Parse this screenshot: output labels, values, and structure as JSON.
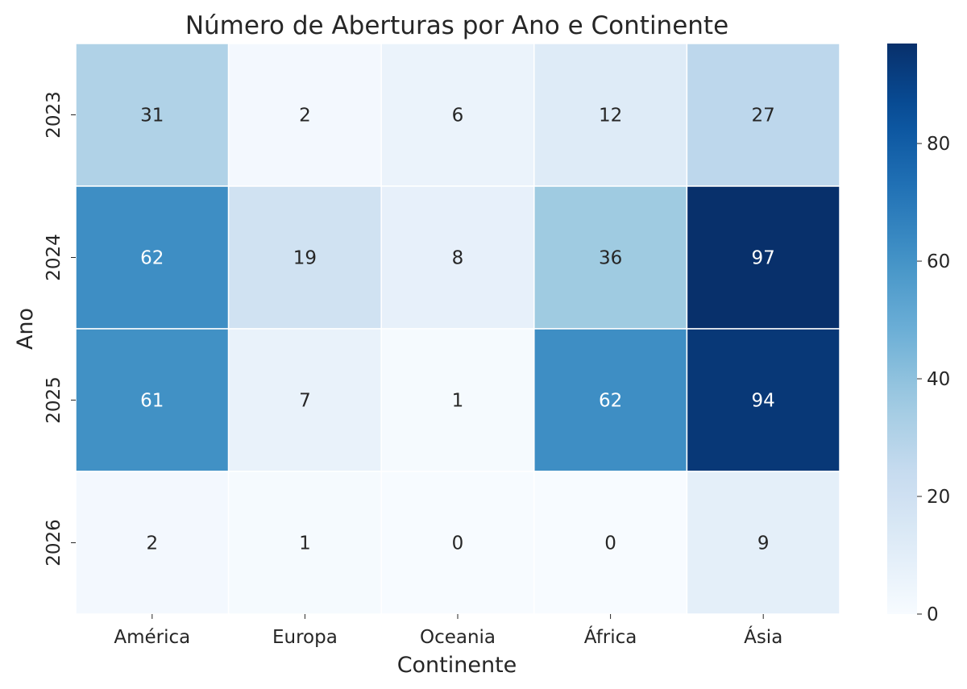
{
  "chart_data": {
    "type": "heatmap",
    "title": "Número de Aberturas por Ano e Continente",
    "xlabel": "Continente",
    "ylabel": "Ano",
    "x_categories": [
      "América",
      "Europa",
      "Oceania",
      "África",
      "Ásia"
    ],
    "y_categories": [
      "2023",
      "2024",
      "2025",
      "2026"
    ],
    "values": [
      [
        31,
        2,
        6,
        12,
        27
      ],
      [
        62,
        19,
        8,
        36,
        97
      ],
      [
        61,
        7,
        1,
        62,
        94
      ],
      [
        2,
        1,
        0,
        0,
        9
      ]
    ],
    "colormap": "Blues",
    "vmin": 0,
    "vmax": 97,
    "colorbar_ticks": [
      0,
      20,
      40,
      60,
      80
    ],
    "colorbar_tick_labels": [
      "0",
      "20",
      "40",
      "60",
      "80"
    ],
    "colors": {
      "low": "#f7fbff",
      "high": "#08306b",
      "text_dark": "#262626",
      "text_light": "#ffffff"
    }
  }
}
